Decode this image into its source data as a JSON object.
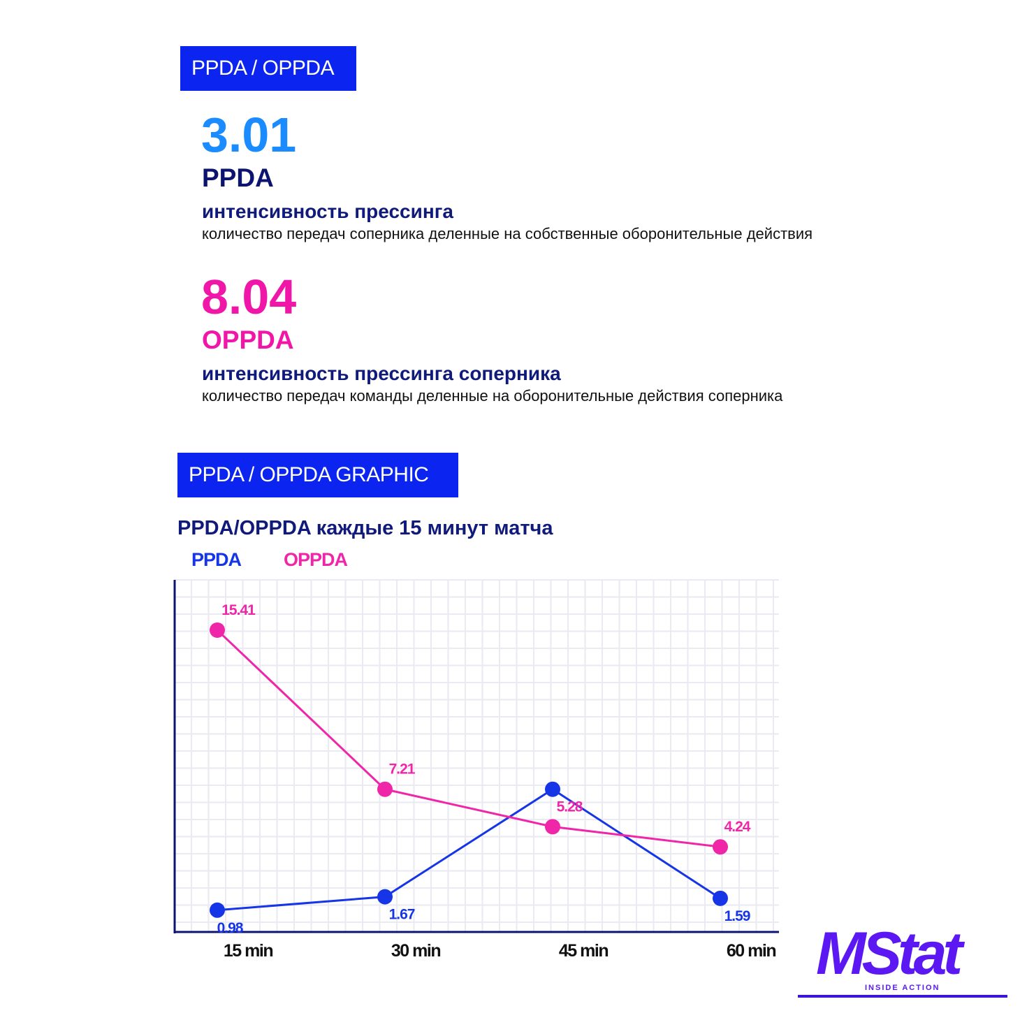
{
  "sections": {
    "summary_label": "PPDA / OPPDA",
    "graph_label": "PPDA / OPPDA GRAPHIC"
  },
  "ppda": {
    "value": "3.01",
    "name": "PPDA",
    "title": "интенсивность прессинга",
    "description": "количество передач соперника деленные на собственные оборонительные действия"
  },
  "oppda": {
    "value": "8.04",
    "name": "OPPDA",
    "title": "интенсивность прессинга соперника",
    "description": "количество передач команды деленные на оборонительные действия соперника"
  },
  "chart_data": {
    "type": "line",
    "title": "PPDA/OPPDA каждые 15 минут матча",
    "xlabel": "",
    "ylabel": "",
    "categories": [
      "15 min",
      "30 min",
      "45 min",
      "60 min"
    ],
    "ylim": [
      0,
      18
    ],
    "grid": true,
    "legend": "top-left",
    "series": [
      {
        "name": "PPDA",
        "color": "#1535e6",
        "values": [
          0.98,
          1.67,
          7.21,
          1.59
        ],
        "labels": [
          "0.98",
          "1.67",
          "",
          "1.59"
        ]
      },
      {
        "name": "OPPDA",
        "color": "#f026a8",
        "values": [
          15.41,
          7.21,
          5.28,
          4.24
        ],
        "labels": [
          "15.41",
          "7.21",
          "5.28",
          "4.24"
        ]
      }
    ]
  },
  "logo": {
    "text": "MStat",
    "tagline": "INSIDE ACTION"
  }
}
